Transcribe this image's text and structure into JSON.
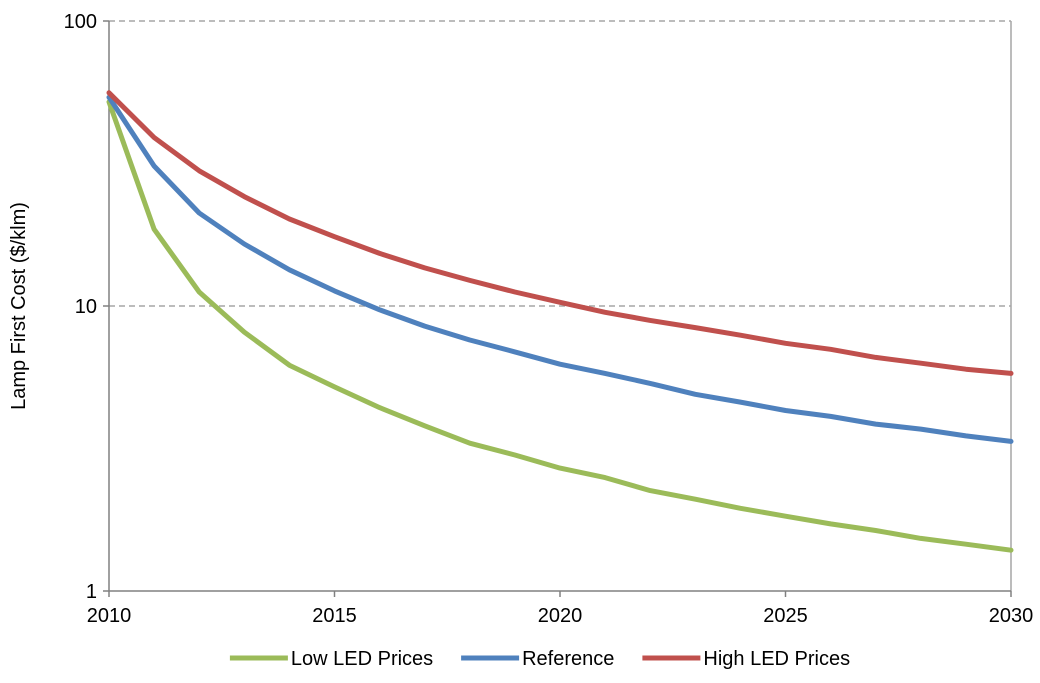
{
  "chart_data": {
    "type": "line",
    "title": "",
    "xlabel": "",
    "ylabel": "Lamp First Cost ($/klm)",
    "yscale": "log",
    "xlim": [
      2010,
      2030
    ],
    "ylim": [
      1,
      100
    ],
    "x_ticks": [
      2010,
      2015,
      2020,
      2025,
      2030
    ],
    "x_tick_labels": [
      "2010",
      "2015",
      "2020",
      "2025",
      "2030"
    ],
    "y_ticks": [
      1,
      10,
      100
    ],
    "y_tick_labels": [
      "1",
      "10",
      "100"
    ],
    "grid": "horizontal dashed at 10 and 100",
    "legend_position": "bottom",
    "x": [
      2010,
      2011,
      2012,
      2013,
      2014,
      2015,
      2016,
      2017,
      2018,
      2019,
      2020,
      2021,
      2022,
      2023,
      2024,
      2025,
      2026,
      2027,
      2028,
      2029,
      2030
    ],
    "series": [
      {
        "name": "Low LED Prices",
        "color": "#9BBB59",
        "values": [
          52,
          18.6,
          11.2,
          8.1,
          6.2,
          5.2,
          4.4,
          3.8,
          3.3,
          3.0,
          2.7,
          2.5,
          2.25,
          2.1,
          1.95,
          1.83,
          1.72,
          1.63,
          1.53,
          1.46,
          1.39
        ]
      },
      {
        "name": "Reference",
        "color": "#4F81BD",
        "values": [
          54,
          31,
          21.2,
          16.5,
          13.4,
          11.3,
          9.7,
          8.5,
          7.6,
          6.9,
          6.25,
          5.8,
          5.35,
          4.9,
          4.6,
          4.3,
          4.1,
          3.85,
          3.7,
          3.5,
          3.35
        ]
      },
      {
        "name": "High LED Prices",
        "color": "#C0504D",
        "values": [
          56,
          39,
          29.8,
          24.2,
          20.2,
          17.5,
          15.3,
          13.6,
          12.3,
          11.2,
          10.3,
          9.5,
          8.9,
          8.4,
          7.9,
          7.4,
          7.05,
          6.6,
          6.3,
          6.0,
          5.8
        ]
      }
    ]
  }
}
